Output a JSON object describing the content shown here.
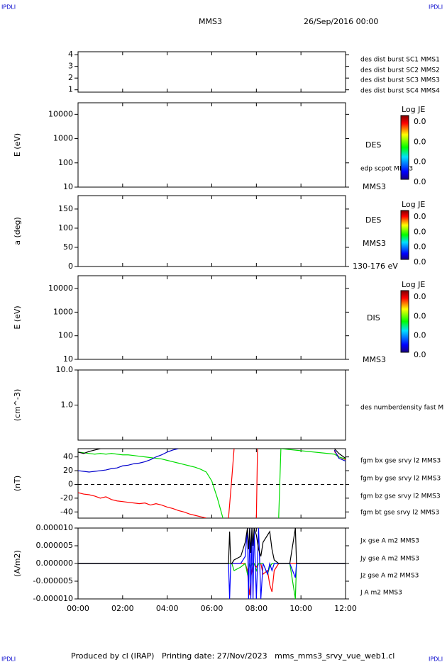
{
  "header": {
    "left_mark": "IPDLI",
    "right_mark": "IPDLI",
    "title": "MMS3",
    "date": "26/Sep/2016 00:00"
  },
  "footer": {
    "text": "Produced by cl (IRAP)   Printing date: 27/Nov/2023   mms_mms3_srvy_vue_web1.cl",
    "left_mark": "IPDLI",
    "right_mark": "IPDLI"
  },
  "chart_data": [
    {
      "type": "line",
      "xlim": [
        0,
        12
      ],
      "ylim": [
        0.8,
        4.25
      ],
      "yticks": [
        1,
        2,
        3,
        4
      ],
      "series": [
        {
          "name": "des dist burst SC1 MMS1",
          "color": "#0000ff"
        },
        {
          "name": "des dist burst SC2 MMS2",
          "color": "#ff00ff"
        },
        {
          "name": "des dist burst SC3 MMS3",
          "color": "#ff0000"
        },
        {
          "name": "des dist burst SC4 MMS4",
          "color": "#00cc00"
        }
      ]
    },
    {
      "type": "spectrogram",
      "ylabel": "E (eV)",
      "yscale": "log",
      "xlim": [
        0,
        12
      ],
      "ylim": [
        10,
        30000
      ],
      "yticks": [
        10,
        100,
        1000,
        10000
      ],
      "annotations": [
        "DES",
        "edp scpot MMS3",
        "MMS3"
      ],
      "colorbar": {
        "title": "Log JE",
        "labels": [
          "0.0",
          "0.0",
          "0.0",
          "0.0"
        ]
      }
    },
    {
      "type": "spectrogram",
      "ylabel": "a (deg)",
      "xlim": [
        0,
        12
      ],
      "ylim": [
        0,
        185
      ],
      "yticks": [
        0,
        50,
        100,
        150
      ],
      "annotations": [
        "DES",
        "MMS3",
        "130-176 eV"
      ],
      "colorbar": {
        "title": "Log JE",
        "labels": [
          "0.0",
          "0.0",
          "0.0",
          "0.0"
        ]
      }
    },
    {
      "type": "spectrogram",
      "ylabel": "E (eV)",
      "yscale": "log",
      "xlim": [
        0,
        12
      ],
      "ylim": [
        10,
        35000
      ],
      "yticks": [
        10,
        100,
        1000,
        10000
      ],
      "annotations": [
        "DIS",
        "MMS3"
      ],
      "colorbar": {
        "title": "Log JE",
        "labels": [
          "0.0",
          "0.0",
          "0.0",
          "0.0"
        ]
      }
    },
    {
      "type": "line",
      "ylabel": "(cm^-3)",
      "yscale": "log",
      "xlim": [
        0,
        12
      ],
      "ylim": [
        0.1,
        10
      ],
      "yticks": [
        {
          "value": 1,
          "label": "1.0"
        },
        {
          "value": 10,
          "label": "10.0"
        }
      ],
      "series": [
        {
          "name": "des numberdensity fast M",
          "color": "#000000"
        }
      ]
    },
    {
      "type": "line",
      "ylabel": "(nT)",
      "xlim": [
        0,
        12
      ],
      "ylim": [
        -49,
        52
      ],
      "yticks": [
        -40,
        -20,
        0,
        20,
        40
      ],
      "zero_line": true,
      "x": [
        0,
        0.25,
        0.5,
        0.75,
        1,
        1.25,
        1.5,
        1.75,
        2,
        2.25,
        2.5,
        2.75,
        3,
        3.25,
        3.5,
        3.75,
        4,
        4.25,
        4.5,
        4.75,
        5,
        5.25,
        5.5,
        5.75,
        6,
        6.25,
        6.5,
        6.75,
        6.9,
        7.0,
        7.95,
        8.0,
        8.05,
        9.0,
        9.1,
        11.5,
        11.7,
        12
      ],
      "series": [
        {
          "name": "fgm bx gse srvy l2 MMS3",
          "color": "#ff0000",
          "values": [
            -12,
            -14,
            -15,
            -17,
            -20,
            -18,
            -22,
            -24,
            -25,
            -26,
            -27,
            -28,
            -27,
            -30,
            -28,
            -30,
            -33,
            -35,
            -38,
            -40,
            -43,
            -45,
            -47,
            -49,
            null,
            null,
            null,
            -49,
            10,
            52,
            null,
            -49,
            52,
            null,
            null,
            48,
            40,
            36
          ]
        },
        {
          "name": "fgm by gse srvy l2 MMS3",
          "color": "#00dd00",
          "values": [
            47,
            46,
            45,
            44,
            45,
            44,
            45,
            44,
            43,
            43,
            42,
            41,
            40,
            39,
            38,
            37,
            35,
            33,
            31,
            29,
            27,
            25,
            22,
            18,
            5,
            -20,
            -49,
            null,
            null,
            null,
            null,
            null,
            null,
            -49,
            52,
            44,
            40,
            37
          ]
        },
        {
          "name": "fgm bz gse srvy l2 MMS3",
          "color": "#0000cc",
          "values": [
            20,
            19,
            18,
            19,
            20,
            21,
            23,
            24,
            27,
            28,
            30,
            31,
            33,
            36,
            40,
            43,
            47,
            50,
            52,
            null,
            null,
            null,
            null,
            null,
            null,
            null,
            null,
            null,
            null,
            null,
            null,
            null,
            null,
            null,
            null,
            50,
            38,
            34
          ]
        },
        {
          "name": "fgm bt gse srvy l2 MMS3",
          "color": "#000000",
          "values": [
            47,
            45,
            48,
            50,
            52,
            null,
            null,
            null,
            null,
            null,
            null,
            null,
            null,
            null,
            null,
            null,
            null,
            null,
            null,
            null,
            null,
            null,
            null,
            null,
            null,
            null,
            null,
            null,
            null,
            null,
            null,
            null,
            null,
            null,
            null,
            52,
            45,
            38
          ]
        }
      ]
    },
    {
      "type": "line",
      "ylabel": "(A/m2)",
      "xlim": [
        0,
        12
      ],
      "ylim": [
        -1e-05,
        1e-05
      ],
      "yticks": [
        {
          "value": 1e-05,
          "label": "0.000010"
        },
        {
          "value": 5e-06,
          "label": "0.000005"
        },
        {
          "value": 0,
          "label": "0.000000"
        },
        {
          "value": -5e-06,
          "label": "-0.000005"
        },
        {
          "value": -1e-05,
          "label": "-0.000010"
        }
      ],
      "xticks": [
        {
          "value": 0,
          "label": "00:00"
        },
        {
          "value": 2,
          "label": "02:00"
        },
        {
          "value": 4,
          "label": "04:00"
        },
        {
          "value": 6,
          "label": "06:00"
        },
        {
          "value": 8,
          "label": "08:00"
        },
        {
          "value": 10,
          "label": "10:00"
        },
        {
          "value": 12,
          "label": "12:00"
        }
      ],
      "x": [
        0,
        6.75,
        6.8,
        6.85,
        6.9,
        7.0,
        7.3,
        7.5,
        7.6,
        7.65,
        7.7,
        7.75,
        7.8,
        7.85,
        7.9,
        8.0,
        8.1,
        8.2,
        8.3,
        8.5,
        8.6,
        8.7,
        8.8,
        9.0,
        9.5,
        9.75,
        9.8,
        12
      ],
      "series": [
        {
          "name": "Jx gse A m2 MMS3",
          "color": "#ff0000",
          "values": [
            0,
            0,
            0,
            0,
            0,
            0,
            0,
            0,
            -2e-06,
            -6e-06,
            -9e-06,
            -4e-06,
            -2e-06,
            0,
            0,
            -1e-06,
            0,
            0,
            -3e-06,
            -2e-06,
            -6e-06,
            -8e-06,
            -2e-06,
            0,
            0,
            0,
            0,
            0
          ]
        },
        {
          "name": "Jy gse A m2 MMS3",
          "color": "#00cc00",
          "values": [
            0,
            0,
            0,
            0,
            0,
            -2e-06,
            -1e-06,
            0,
            -3e-06,
            -2e-06,
            0,
            -1e-06,
            0,
            0,
            0,
            -2e-06,
            0,
            0,
            0,
            -3e-06,
            -1e-06,
            0,
            0,
            0,
            0,
            -1e-05,
            0,
            0
          ]
        },
        {
          "name": "Jz gse A m2 MMS3",
          "color": "#0000ff",
          "values": [
            0,
            0,
            -1e-05,
            0,
            0,
            0,
            0,
            2e-06,
            1e-05,
            -1e-05,
            1e-05,
            -1e-05,
            1e-05,
            -1e-05,
            1e-05,
            -1e-05,
            1e-05,
            -1e-05,
            0,
            -3e-06,
            0,
            -2e-06,
            0,
            0,
            0,
            -4e-06,
            0,
            0
          ]
        },
        {
          "name": "J A m2 MMS3",
          "color": "#000000",
          "values": [
            0,
            0,
            9e-06,
            0,
            0,
            1e-06,
            2e-06,
            6e-06,
            1e-05,
            4e-06,
            1e-05,
            3e-06,
            1e-05,
            5e-06,
            1e-05,
            8e-06,
            4e-06,
            2e-06,
            6e-06,
            8e-06,
            9e-06,
            4e-06,
            1e-06,
            0,
            0,
            1e-05,
            0,
            0
          ]
        }
      ]
    }
  ]
}
